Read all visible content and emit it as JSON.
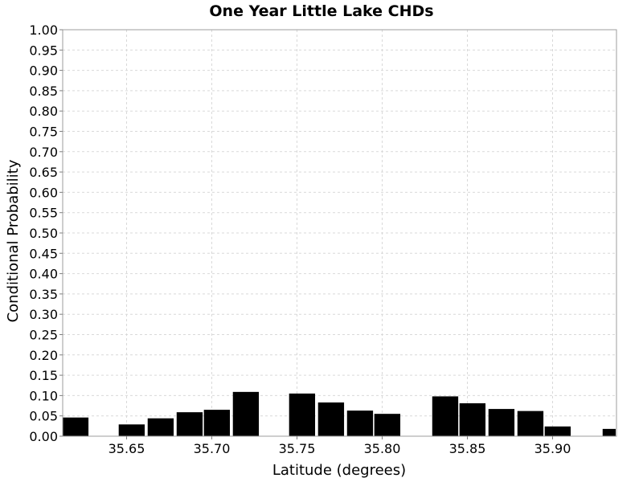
{
  "chart_data": {
    "type": "bar",
    "title": "One Year Little Lake CHDs",
    "xlabel": "Latitude (degrees)",
    "ylabel": "Conditional Probability",
    "xlim": [
      35.6125,
      35.9375
    ],
    "ylim": [
      0,
      1
    ],
    "grid": true,
    "bar_color": "#000000",
    "x_ticks": [
      "35.65",
      "35.70",
      "35.75",
      "35.80",
      "35.85",
      "35.90"
    ],
    "y_ticks": [
      "0.00",
      "0.05",
      "0.10",
      "0.15",
      "0.20",
      "0.25",
      "0.30",
      "0.35",
      "0.40",
      "0.45",
      "0.50",
      "0.55",
      "0.60",
      "0.65",
      "0.70",
      "0.75",
      "0.80",
      "0.85",
      "0.90",
      "0.95",
      "1.00"
    ],
    "bin_width": 0.016667,
    "x": [
      35.62,
      35.653,
      35.67,
      35.687,
      35.703,
      35.72,
      35.753,
      35.77,
      35.787,
      35.803,
      35.837,
      35.853,
      35.87,
      35.887,
      35.903,
      35.937
    ],
    "values": [
      0.046,
      0.029,
      0.044,
      0.059,
      0.065,
      0.109,
      0.105,
      0.083,
      0.063,
      0.055,
      0.098,
      0.081,
      0.067,
      0.062,
      0.024,
      0.018
    ]
  }
}
